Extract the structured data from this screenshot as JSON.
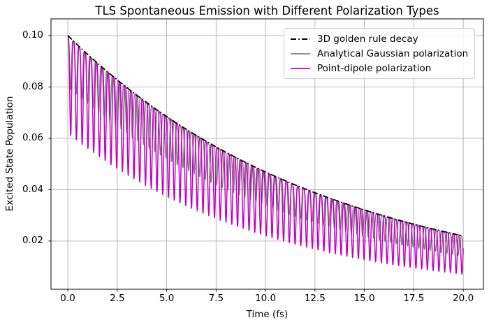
{
  "figure": {
    "background_color": "#ffffff",
    "grid_color": "#b0b0b0",
    "spine_color": "#000000"
  },
  "chart_data": {
    "type": "line",
    "title": "TLS Spontaneous Emission with Different Polarization Types",
    "xlabel": "Time (fs)",
    "ylabel": "Excited State Population",
    "xlim": [
      -0.85,
      21.02
    ],
    "ylim": [
      0.0012,
      0.1065
    ],
    "x_ticks": [
      0.0,
      2.5,
      5.0,
      7.5,
      10.0,
      12.5,
      15.0,
      17.5,
      20.0
    ],
    "x_tick_labels": [
      "0.0",
      "2.5",
      "5.0",
      "7.5",
      "10.0",
      "12.5",
      "15.0",
      "17.5",
      "20.0"
    ],
    "y_ticks": [
      0.02,
      0.04,
      0.06,
      0.08,
      0.1
    ],
    "y_tick_labels": [
      "0.02",
      "0.04",
      "0.06",
      "0.08",
      "0.10"
    ],
    "grid": true,
    "legend": {
      "position": "upper right"
    },
    "series": [
      {
        "name": "3D golden rule decay",
        "color": "#000000",
        "linestyle": "dashdot",
        "linewidth": 1.8,
        "model": {
          "kind": "exp_decay",
          "p0": 0.1,
          "tau_fs": 13.2,
          "t_range": [
            0,
            20
          ]
        },
        "sampled_points": {
          "t_fs": [
            0,
            2,
            4,
            6,
            8,
            10,
            12,
            14,
            16,
            18,
            20
          ],
          "population": [
            0.1,
            0.086,
            0.0739,
            0.0635,
            0.0546,
            0.0469,
            0.0403,
            0.0347,
            0.0298,
            0.0256,
            0.022
          ]
        }
      },
      {
        "name": "Analytical Gaussian polarization",
        "color": "#808080",
        "linestyle": "solid",
        "linewidth": 1.5,
        "model": {
          "kind": "damped_oscillation",
          "p0": 0.1,
          "tau_fs": 13.2,
          "period_fs": 0.284,
          "dip_frac_start": 0.2,
          "dip_frac_slope": 0.008,
          "sharpness": 4,
          "t_range": [
            0,
            20
          ]
        },
        "peak_value_at_t0": 0.1,
        "dip_min_at_t0": 0.08,
        "dip_min_at_t20": 0.014
      },
      {
        "name": "Point-dipole polarization",
        "color": "#BF00BF",
        "linestyle": "solid",
        "linewidth": 1.5,
        "model": {
          "kind": "damped_oscillation",
          "p0": 0.1,
          "tau_fs": 13.2,
          "period_fs": 0.291,
          "dip_frac_start": 0.38,
          "dip_frac_slope": 0.015,
          "sharpness": 4,
          "t_range": [
            0,
            20
          ]
        },
        "peak_value_at_t0": 0.1,
        "dip_min_at_t0": 0.063,
        "dip_min_at_t20": 0.008
      }
    ]
  }
}
